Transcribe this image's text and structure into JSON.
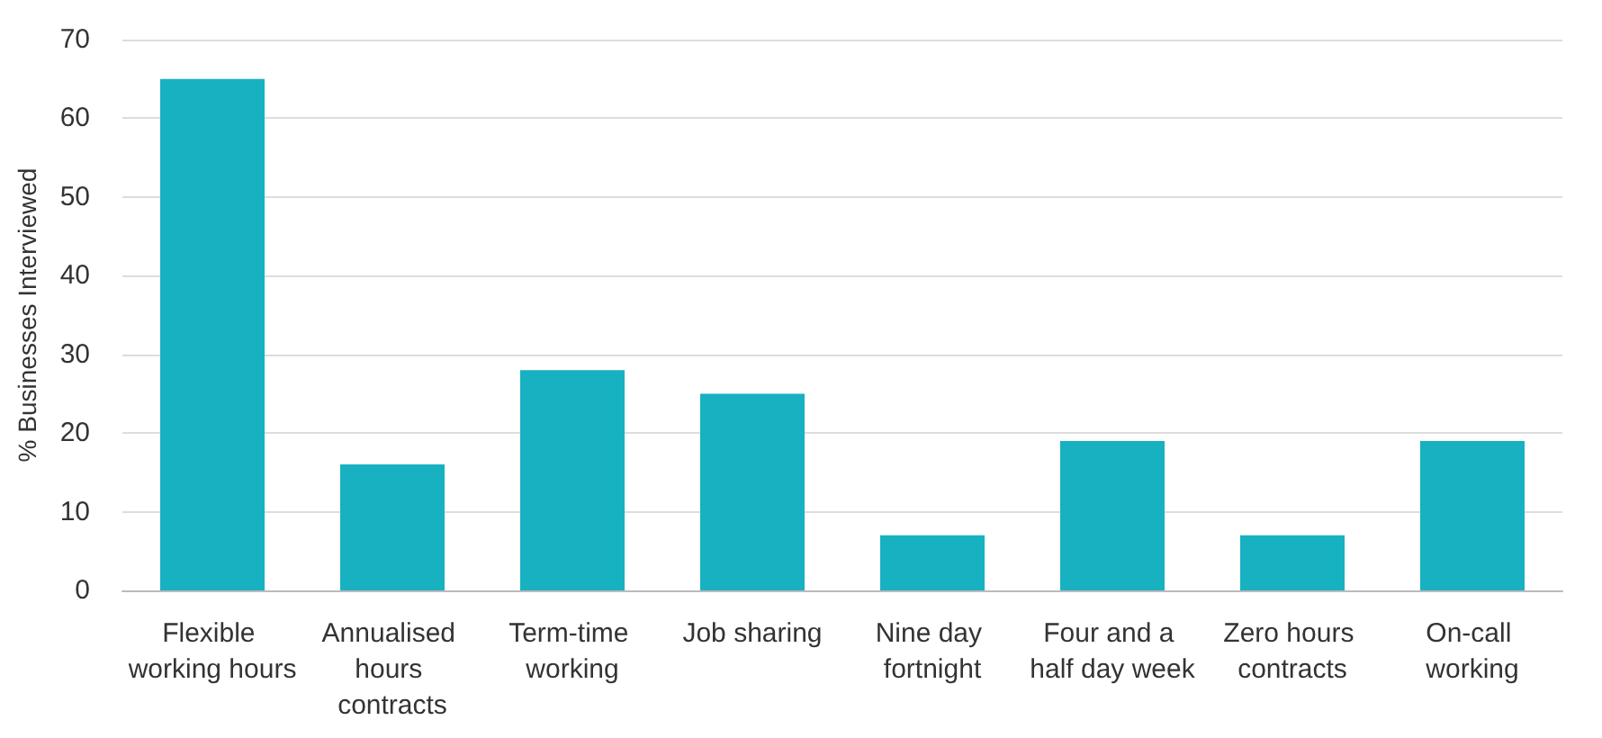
{
  "chart_data": {
    "type": "bar",
    "ylabel": "% Businesses Interviewed",
    "categories": [
      "Flexible working hours",
      "Annualised hours contracts",
      "Term-time working",
      "Job sharing",
      "Nine day fortnight",
      "Four and a half day week",
      "Zero hours contracts",
      "On-call working"
    ],
    "values": [
      65,
      16,
      28,
      25,
      7,
      19,
      7,
      19
    ],
    "color": "#17b1c1",
    "ylim": [
      0,
      70
    ],
    "yticks": [
      0,
      10,
      20,
      30,
      40,
      50,
      60,
      70
    ],
    "grid": "y"
  }
}
